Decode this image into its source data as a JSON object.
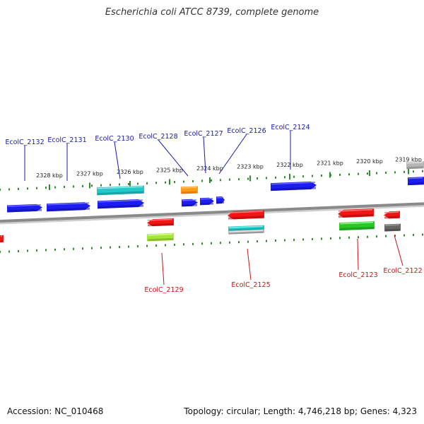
{
  "title": "Escherichia coli ATCC 8739, complete genome",
  "footer": {
    "accession": "Accession: NC_010468",
    "topology": "Topology: circular; Length: 4,746,218 bp; Genes: 4,323"
  },
  "colors": {
    "backbone": "#8a8a8a",
    "tick": "#2e8b2e",
    "label_forward": "#1a1aa8",
    "label_reverse": "#c81414"
  },
  "scale": {
    "unit": "kbp",
    "labels": [
      "2328 kbp",
      "2327 kbp",
      "2326 kbp",
      "2325 kbp",
      "2324 kbp",
      "2323 kbp",
      "2322 kbp",
      "2321 kbp",
      "2320 kbp",
      "2319 kbp"
    ]
  },
  "gene_labels": {
    "forward": [
      "EcolC_2132",
      "EcolC_2131",
      "EcolC_2130",
      "EcolC_2128",
      "EcolC_2127",
      "EcolC_2126",
      "EcolC_2124"
    ],
    "reverse": [
      "EcolC_2129",
      "EcolC_2125",
      "EcolC_2123",
      "EcolC_2122"
    ]
  },
  "features": [
    {
      "name": "EcolC_2132",
      "strand": "forward",
      "color": "blue"
    },
    {
      "name": "EcolC_2131",
      "strand": "forward",
      "color": "blue"
    },
    {
      "name": "EcolC_2130",
      "strand": "forward",
      "color": "blue"
    },
    {
      "name": "EcolC_2130-rna",
      "strand": "forward",
      "color": "cyan"
    },
    {
      "name": "EcolC_2128",
      "strand": "forward",
      "color": "blue"
    },
    {
      "name": "EcolC_2128-rna",
      "strand": "forward",
      "color": "orange"
    },
    {
      "name": "EcolC_2127",
      "strand": "forward",
      "color": "blue"
    },
    {
      "name": "EcolC_2126",
      "strand": "forward",
      "color": "blue"
    },
    {
      "name": "EcolC_2124",
      "strand": "forward",
      "color": "blue"
    },
    {
      "name": "unlabeled-edge",
      "strand": "forward",
      "color": "blue"
    },
    {
      "name": "unlabeled-edge-rna",
      "strand": "forward",
      "color": "gray"
    },
    {
      "name": "EcolC_2129",
      "strand": "reverse",
      "color": "red"
    },
    {
      "name": "EcolC_2129-rna",
      "strand": "reverse",
      "color": "yellowgreen"
    },
    {
      "name": "EcolC_2125",
      "strand": "reverse",
      "color": "red"
    },
    {
      "name": "EcolC_2125-rna",
      "strand": "reverse",
      "color": "cyan"
    },
    {
      "name": "EcolC_2125-rna2",
      "strand": "reverse",
      "color": "gray"
    },
    {
      "name": "EcolC_2123",
      "strand": "reverse",
      "color": "red"
    },
    {
      "name": "EcolC_2123-rna",
      "strand": "reverse",
      "color": "green"
    },
    {
      "name": "EcolC_2122",
      "strand": "reverse",
      "color": "red"
    },
    {
      "name": "EcolC_2122-rna",
      "strand": "reverse",
      "color": "darkgray"
    },
    {
      "name": "left-edge",
      "strand": "reverse",
      "color": "red"
    }
  ]
}
